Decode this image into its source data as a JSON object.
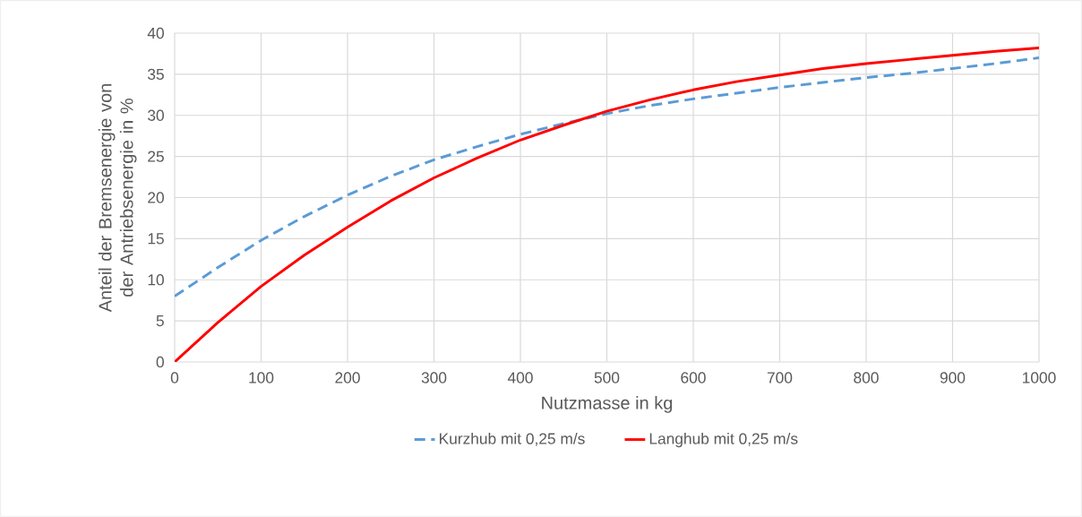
{
  "chart_data": {
    "type": "line",
    "xlabel": "Nutzmasse in kg",
    "ylabel": "Anteil der Bremsenergie von der Antriebsenergie in %",
    "x": [
      0,
      50,
      100,
      150,
      200,
      250,
      300,
      350,
      400,
      450,
      500,
      550,
      600,
      650,
      700,
      750,
      800,
      850,
      900,
      950,
      1000
    ],
    "series": [
      {
        "name": "Kurzhub mit 0,25 m/s",
        "color": "#5b9bd5",
        "line_style": "dashed",
        "values": [
          8,
          11.5,
          14.8,
          17.7,
          20.3,
          22.6,
          24.6,
          26.2,
          27.7,
          29.0,
          30.2,
          31.2,
          32.0,
          32.7,
          33.4,
          34.0,
          34.6,
          35.1,
          35.7,
          36.3,
          37.0
        ]
      },
      {
        "name": "Langhub mit 0,25 m/s",
        "color": "#ff0000",
        "line_style": "solid",
        "values": [
          0,
          4.8,
          9.2,
          13.0,
          16.4,
          19.6,
          22.4,
          24.8,
          27.0,
          28.8,
          30.5,
          31.9,
          33.1,
          34.1,
          34.9,
          35.7,
          36.3,
          36.8,
          37.3,
          37.8,
          38.2
        ]
      }
    ],
    "xlim": [
      0,
      1000
    ],
    "xticks": [
      0,
      100,
      200,
      300,
      400,
      500,
      600,
      700,
      800,
      900,
      1000
    ],
    "ylim": [
      0,
      40
    ],
    "yticks": [
      0,
      5,
      10,
      15,
      20,
      25,
      30,
      35,
      40
    ],
    "grid": true,
    "legend": "bottom",
    "marker": "none"
  }
}
